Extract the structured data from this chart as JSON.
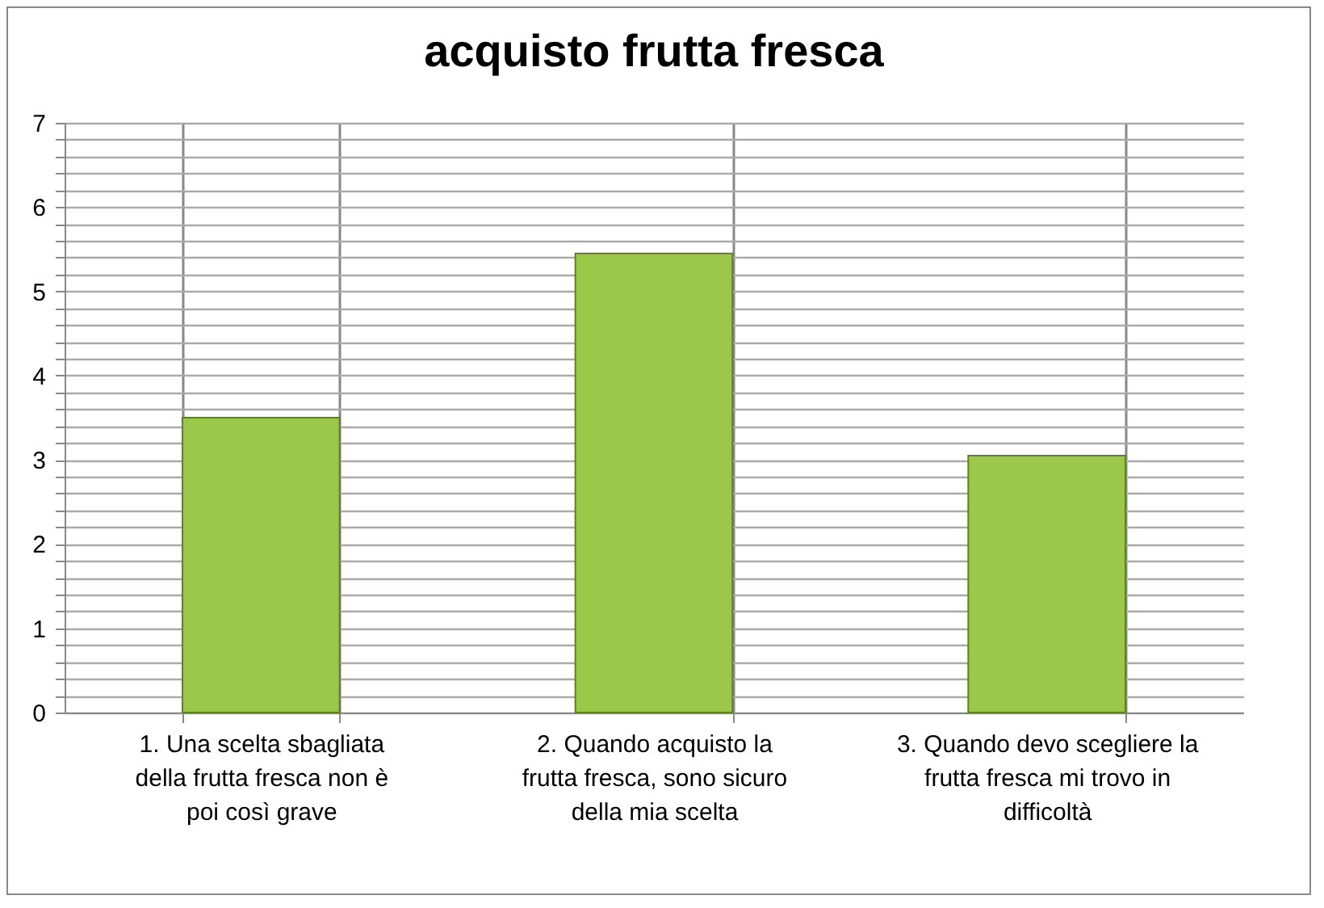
{
  "chart_data": {
    "type": "bar",
    "title": "acquisto frutta fresca",
    "categories": [
      "1. Una scelta sbagliata della frutta fresca non è poi così grave",
      "2. Quando acquisto la frutta fresca, sono sicuro della mia scelta",
      "3. Quando devo scegliere la frutta fresca mi trovo in difficoltà"
    ],
    "values": [
      3.5,
      5.45,
      3.05
    ],
    "color": "#9bc74a",
    "ylim": [
      0,
      7
    ],
    "yticks": [
      0,
      {
        "value": 0.2,
        "label": null
      },
      {
        "value": 0.4,
        "label": null
      },
      {
        "value": 0.6,
        "label": null
      },
      {
        "value": 0.8,
        "label": null
      },
      1,
      {
        "value": 1.2,
        "label": null
      },
      {
        "value": 1.4,
        "label": null
      },
      {
        "value": 1.6,
        "label": null
      },
      {
        "value": 1.8,
        "label": null
      },
      2,
      {
        "value": 2.2,
        "label": null
      },
      {
        "value": 2.4,
        "label": null
      },
      {
        "value": 2.6,
        "label": null
      },
      {
        "value": 2.8,
        "label": null
      },
      3,
      {
        "value": 3.2,
        "label": null
      },
      {
        "value": 3.4,
        "label": null
      },
      {
        "value": 3.6,
        "label": null
      },
      {
        "value": 3.8,
        "label": null
      },
      4,
      {
        "value": 4.2,
        "label": null
      },
      {
        "value": 4.4,
        "label": null
      },
      {
        "value": 4.6,
        "label": null
      },
      {
        "value": 4.8,
        "label": null
      },
      5,
      {
        "value": 5.2,
        "label": null
      },
      {
        "value": 5.4,
        "label": null
      },
      {
        "value": 5.6,
        "label": null
      },
      {
        "value": 5.8,
        "label": null
      },
      6,
      {
        "value": 6.2,
        "label": null
      },
      {
        "value": 6.4,
        "label": null
      },
      {
        "value": 6.6,
        "label": null
      },
      {
        "value": 6.8,
        "label": null
      },
      7
    ],
    "grid": true
  }
}
